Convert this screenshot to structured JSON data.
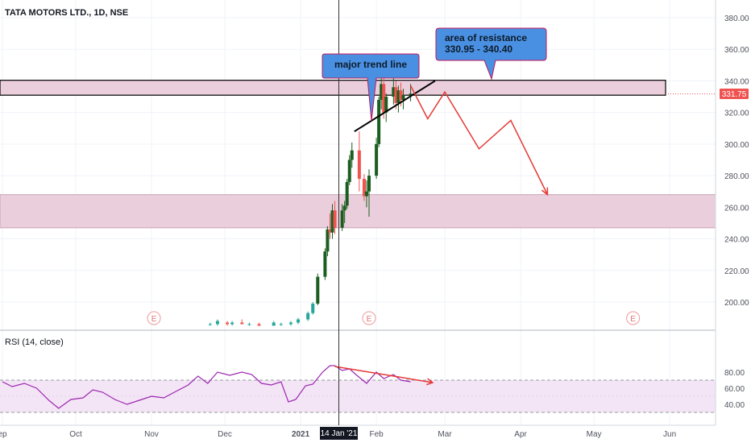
{
  "symbol": {
    "name": "TATA MOTORS LTD., 1D, NSE"
  },
  "price_axis": {
    "ticks": [
      "380.00",
      "360.00",
      "340.00",
      "320.00",
      "300.00",
      "280.00",
      "260.00",
      "240.00",
      "220.00",
      "200.00"
    ],
    "last_price_label": "331.75",
    "last_price_color": "#ef5350"
  },
  "rsi": {
    "title": "RSI (14, close)",
    "ticks": [
      "80.00",
      "60.00",
      "40.00"
    ],
    "line_color": "#9c27b0",
    "band_color": "#f3e5f5"
  },
  "time_axis": {
    "labels": [
      "ep",
      "Oct",
      "Nov",
      "Dec",
      "2021",
      "Feb",
      "Mar",
      "Apr",
      "May",
      "Jun"
    ],
    "crosshair_label": "14 Jan '21"
  },
  "annotations": {
    "trend_callout": "major trend line",
    "resistance_callout_line1": "area of resistance",
    "resistance_callout_line2": "330.95 - 340.40",
    "earnings_marker": "E"
  },
  "colors": {
    "up_candle": "#26a69a",
    "up_candle_dark": "#1b5e20",
    "down_candle": "#ef5350",
    "zone_fill": "#e8c9d8",
    "callout_fill": "#4a90e2",
    "arrow_red": "#e53935"
  },
  "chart_data": {
    "type": "candlestick",
    "title": "TATA MOTORS LTD., 1D, NSE",
    "y_range": [
      185,
      390
    ],
    "resistance_zone": [
      330.95,
      340.4
    ],
    "support_zone": [
      247,
      268
    ],
    "last_price": 331.75,
    "ohlc": [
      {
        "date": "2020-11-25",
        "o": 186,
        "h": 187,
        "l": 185,
        "c": 186
      },
      {
        "date": "2020-11-28",
        "o": 186,
        "h": 189,
        "l": 185,
        "c": 188
      },
      {
        "date": "2020-12-02",
        "o": 187,
        "h": 188,
        "l": 185,
        "c": 186
      },
      {
        "date": "2020-12-04",
        "o": 186,
        "h": 188,
        "l": 185,
        "c": 187
      },
      {
        "date": "2020-12-08",
        "o": 187,
        "h": 189,
        "l": 186,
        "c": 186
      },
      {
        "date": "2020-12-11",
        "o": 186,
        "h": 187,
        "l": 185,
        "c": 186
      },
      {
        "date": "2020-12-15",
        "o": 186,
        "h": 187,
        "l": 185,
        "c": 185
      },
      {
        "date": "2020-12-21",
        "o": 185,
        "h": 188,
        "l": 185,
        "c": 187
      },
      {
        "date": "2020-12-24",
        "o": 186,
        "h": 187,
        "l": 185,
        "c": 186
      },
      {
        "date": "2020-12-28",
        "o": 186,
        "h": 188,
        "l": 185,
        "c": 187
      },
      {
        "date": "2020-12-31",
        "o": 187,
        "h": 190,
        "l": 186,
        "c": 189
      },
      {
        "date": "2021-01-04",
        "o": 189,
        "h": 194,
        "l": 188,
        "c": 193
      },
      {
        "date": "2021-01-06",
        "o": 193,
        "h": 200,
        "l": 192,
        "c": 199
      },
      {
        "date": "2021-01-08",
        "o": 199,
        "h": 218,
        "l": 198,
        "c": 216
      },
      {
        "date": "2021-01-11",
        "o": 216,
        "h": 234,
        "l": 214,
        "c": 232
      },
      {
        "date": "2021-01-12",
        "o": 232,
        "h": 248,
        "l": 229,
        "c": 246
      },
      {
        "date": "2021-01-13",
        "o": 246,
        "h": 256,
        "l": 240,
        "c": 244
      },
      {
        "date": "2021-01-14",
        "o": 244,
        "h": 262,
        "l": 240,
        "c": 258
      },
      {
        "date": "2021-01-15",
        "o": 258,
        "h": 264,
        "l": 243,
        "c": 247
      },
      {
        "date": "2021-01-18",
        "o": 247,
        "h": 262,
        "l": 245,
        "c": 258
      },
      {
        "date": "2021-01-19",
        "o": 258,
        "h": 264,
        "l": 250,
        "c": 261
      },
      {
        "date": "2021-01-20",
        "o": 261,
        "h": 278,
        "l": 259,
        "c": 276
      },
      {
        "date": "2021-01-21",
        "o": 276,
        "h": 293,
        "l": 274,
        "c": 290
      },
      {
        "date": "2021-01-22",
        "o": 290,
        "h": 301,
        "l": 285,
        "c": 296
      },
      {
        "date": "2021-01-25",
        "o": 296,
        "h": 308,
        "l": 270,
        "c": 278
      },
      {
        "date": "2021-01-27",
        "o": 278,
        "h": 281,
        "l": 264,
        "c": 267
      },
      {
        "date": "2021-01-28",
        "o": 267,
        "h": 277,
        "l": 260,
        "c": 270
      },
      {
        "date": "2021-01-29",
        "o": 270,
        "h": 284,
        "l": 254,
        "c": 280
      },
      {
        "date": "2021-02-01",
        "o": 280,
        "h": 304,
        "l": 278,
        "c": 300
      },
      {
        "date": "2021-02-02",
        "o": 300,
        "h": 330,
        "l": 298,
        "c": 328
      },
      {
        "date": "2021-02-03",
        "o": 328,
        "h": 342,
        "l": 322,
        "c": 338
      },
      {
        "date": "2021-02-04",
        "o": 338,
        "h": 342,
        "l": 316,
        "c": 320
      },
      {
        "date": "2021-02-05",
        "o": 320,
        "h": 332,
        "l": 314,
        "c": 330
      },
      {
        "date": "2021-02-08",
        "o": 330,
        "h": 342,
        "l": 325,
        "c": 336
      },
      {
        "date": "2021-02-09",
        "o": 336,
        "h": 340,
        "l": 322,
        "c": 326
      },
      {
        "date": "2021-02-10",
        "o": 326,
        "h": 337,
        "l": 320,
        "c": 334
      },
      {
        "date": "2021-02-11",
        "o": 334,
        "h": 339,
        "l": 324,
        "c": 328
      },
      {
        "date": "2021-02-12",
        "o": 328,
        "h": 335,
        "l": 322,
        "c": 331
      },
      {
        "date": "2021-02-15",
        "o": 331,
        "h": 338,
        "l": 327,
        "c": 332
      }
    ],
    "rsi_series": [
      {
        "date": "2020-09-01",
        "v": 68
      },
      {
        "date": "2020-09-05",
        "v": 62
      },
      {
        "date": "2020-09-10",
        "v": 66
      },
      {
        "date": "2020-09-15",
        "v": 60
      },
      {
        "date": "2020-09-20",
        "v": 45
      },
      {
        "date": "2020-09-24",
        "v": 35
      },
      {
        "date": "2020-09-29",
        "v": 46
      },
      {
        "date": "2020-10-04",
        "v": 48
      },
      {
        "date": "2020-10-08",
        "v": 58
      },
      {
        "date": "2020-10-12",
        "v": 55
      },
      {
        "date": "2020-10-17",
        "v": 46
      },
      {
        "date": "2020-10-22",
        "v": 40
      },
      {
        "date": "2020-10-27",
        "v": 45
      },
      {
        "date": "2020-11-01",
        "v": 50
      },
      {
        "date": "2020-11-06",
        "v": 48
      },
      {
        "date": "2020-11-11",
        "v": 56
      },
      {
        "date": "2020-11-16",
        "v": 64
      },
      {
        "date": "2020-11-20",
        "v": 75
      },
      {
        "date": "2020-11-24",
        "v": 66
      },
      {
        "date": "2020-11-28",
        "v": 80
      },
      {
        "date": "2020-12-03",
        "v": 76
      },
      {
        "date": "2020-12-08",
        "v": 80
      },
      {
        "date": "2020-12-12",
        "v": 77
      },
      {
        "date": "2020-12-16",
        "v": 66
      },
      {
        "date": "2020-12-20",
        "v": 64
      },
      {
        "date": "2020-12-24",
        "v": 68
      },
      {
        "date": "2020-12-27",
        "v": 43
      },
      {
        "date": "2020-12-30",
        "v": 46
      },
      {
        "date": "2021-01-03",
        "v": 63
      },
      {
        "date": "2021-01-06",
        "v": 65
      },
      {
        "date": "2021-01-10",
        "v": 80
      },
      {
        "date": "2021-01-13",
        "v": 88
      },
      {
        "date": "2021-01-15",
        "v": 88
      },
      {
        "date": "2021-01-18",
        "v": 82
      },
      {
        "date": "2021-01-21",
        "v": 84
      },
      {
        "date": "2021-01-24",
        "v": 76
      },
      {
        "date": "2021-01-28",
        "v": 66
      },
      {
        "date": "2021-02-01",
        "v": 80
      },
      {
        "date": "2021-02-04",
        "v": 72
      },
      {
        "date": "2021-02-08",
        "v": 77
      },
      {
        "date": "2021-02-11",
        "v": 70
      },
      {
        "date": "2021-02-15",
        "v": 68
      }
    ],
    "rsi_levels": [
      70,
      30
    ],
    "drawings": {
      "trend_line": [
        {
          "date": "2021-01-23",
          "price": 308
        },
        {
          "date": "2021-02-25",
          "price": 340
        }
      ],
      "projection_path": [
        {
          "date": "2021-02-15",
          "price": 337
        },
        {
          "date": "2021-02-22",
          "price": 316
        },
        {
          "date": "2021-03-01",
          "price": 333
        },
        {
          "date": "2021-03-15",
          "price": 297
        },
        {
          "date": "2021-03-28",
          "price": 315
        },
        {
          "date": "2021-04-12",
          "price": 268
        }
      ],
      "rsi_divergence_line": [
        {
          "date": "2021-01-15",
          "v": 87
        },
        {
          "date": "2021-02-24",
          "v": 67
        }
      ],
      "earnings_markers": [
        "2020-11-02",
        "2021-01-29",
        "2021-05-17"
      ]
    }
  }
}
